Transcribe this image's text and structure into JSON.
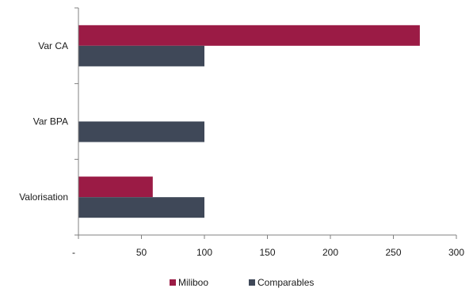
{
  "chart_data": {
    "type": "bar",
    "orientation": "horizontal",
    "categories": [
      "Var CA",
      "Var BPA",
      "Valorisation"
    ],
    "series": [
      {
        "name": "Miliboo",
        "values": [
          271,
          null,
          59
        ],
        "color": "#9b1b45"
      },
      {
        "name": "Comparables",
        "values": [
          100,
          100,
          100
        ],
        "color": "#3f4858"
      }
    ],
    "x_ticks": [
      "-",
      "50",
      "100",
      "150",
      "200",
      "250",
      "300"
    ],
    "xlim": [
      0,
      300
    ],
    "grid": false,
    "legend_position": "bottom"
  }
}
